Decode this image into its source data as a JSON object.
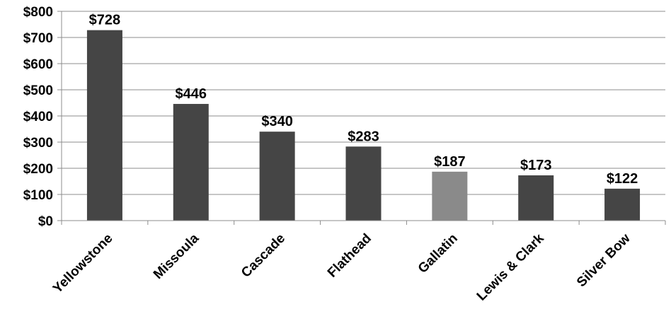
{
  "chart_data": {
    "type": "bar",
    "title": "",
    "xlabel": "",
    "ylabel": "",
    "categories": [
      "Yellowstone",
      "Missoula",
      "Cascade",
      "Flathead",
      "Gallatin",
      "Lewis & Clark",
      "Silver Bow"
    ],
    "values": [
      728,
      446,
      340,
      283,
      187,
      173,
      122
    ],
    "data_labels": [
      "$728",
      "$446",
      "$340",
      "$283",
      "$187",
      "$173",
      "$122"
    ],
    "ylim": [
      0,
      800
    ],
    "yticks": [
      0,
      100,
      200,
      300,
      400,
      500,
      600,
      700,
      800
    ],
    "ytick_labels": [
      "$0",
      "$100",
      "$200",
      "$300",
      "$400",
      "$500",
      "$600",
      "$700",
      "$800"
    ],
    "grid": true,
    "legend": "none",
    "colors": {
      "default_bar": "#454545",
      "highlight_bar": "#8a8a8a",
      "gridline": "#8c8c8c"
    },
    "highlight_category": "Gallatin"
  }
}
